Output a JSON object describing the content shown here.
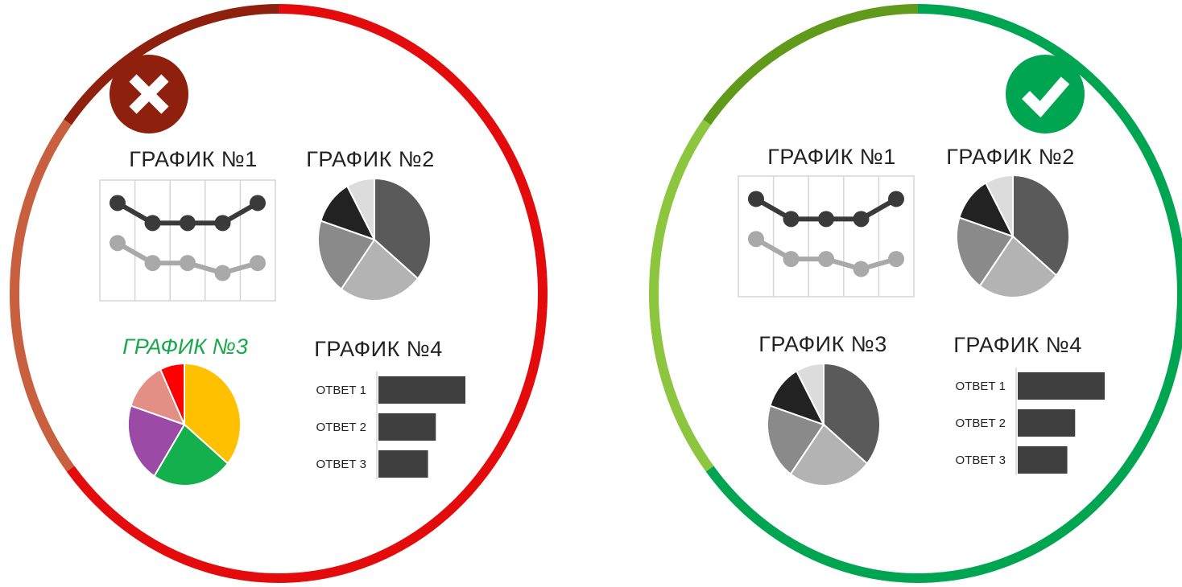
{
  "panels": [
    {
      "id": "bad",
      "badge_icon": "cross-icon",
      "ring_colors": {
        "main": "#e30b0b",
        "left": "#c8603f",
        "top_left": "#8f200e"
      },
      "badge_color": "#8f200e",
      "charts": {
        "chart1": {
          "title": "ГРАФИК №1",
          "series": [
            {
              "values": [
                4,
                3,
                3,
                3,
                4
              ],
              "color": "#3a3a3a"
            },
            {
              "values": [
                2,
                1,
                1,
                0.5,
                1
              ],
              "color": "#a9a9a9"
            }
          ]
        },
        "chart2": {
          "title": "ГРАФИК №2",
          "slices": [
            {
              "value": 36,
              "color": "#5a5a5a"
            },
            {
              "value": 24,
              "color": "#b3b3b3"
            },
            {
              "value": 20,
              "color": "#8a8a8a"
            },
            {
              "value": 12,
              "color": "#222222"
            },
            {
              "value": 8,
              "color": "#dcdcdc"
            }
          ]
        },
        "chart3": {
          "title": "ГРАФИК №3",
          "title_color": "#17a84a",
          "slices": [
            {
              "value": 36,
              "color": "#ffc000"
            },
            {
              "value": 23,
              "color": "#14b04d"
            },
            {
              "value": 21,
              "color": "#9b4aa6"
            },
            {
              "value": 13,
              "color": "#e38f86"
            },
            {
              "value": 7,
              "color": "#ff0000"
            }
          ]
        },
        "chart4": {
          "title": "ГРАФИК №4",
          "bars": [
            {
              "label": "ОТВЕТ 1",
              "value": 100
            },
            {
              "label": "ОТВЕТ 2",
              "value": 66
            },
            {
              "label": "ОТВЕТ 3",
              "value": 57
            }
          ],
          "bar_color": "#3f3f3f"
        }
      }
    },
    {
      "id": "good",
      "badge_icon": "check-icon",
      "ring_colors": {
        "main": "#00a551",
        "left": "#8cc63f",
        "top_left": "#5f9a1a"
      },
      "badge_color": "#00a551",
      "charts": {
        "chart1": {
          "title": "ГРАФИК №1",
          "series": [
            {
              "values": [
                4,
                3,
                3,
                3,
                4
              ],
              "color": "#3a3a3a"
            },
            {
              "values": [
                2,
                1,
                1,
                0.5,
                1
              ],
              "color": "#a9a9a9"
            }
          ]
        },
        "chart2": {
          "title": "ГРАФИК №2",
          "slices": [
            {
              "value": 36,
              "color": "#5a5a5a"
            },
            {
              "value": 24,
              "color": "#b3b3b3"
            },
            {
              "value": 20,
              "color": "#8a8a8a"
            },
            {
              "value": 12,
              "color": "#222222"
            },
            {
              "value": 8,
              "color": "#dcdcdc"
            }
          ]
        },
        "chart3": {
          "title": "ГРАФИК №3",
          "title_color": "#222222",
          "slices": [
            {
              "value": 36,
              "color": "#5a5a5a"
            },
            {
              "value": 24,
              "color": "#b3b3b3"
            },
            {
              "value": 20,
              "color": "#8a8a8a"
            },
            {
              "value": 12,
              "color": "#222222"
            },
            {
              "value": 8,
              "color": "#dcdcdc"
            }
          ]
        },
        "chart4": {
          "title": "ГРАФИК №4",
          "bars": [
            {
              "label": "ОТВЕТ 1",
              "value": 100
            },
            {
              "label": "ОТВЕТ 2",
              "value": 66
            },
            {
              "label": "ОТВЕТ 3",
              "value": 57
            }
          ],
          "bar_color": "#3f3f3f"
        }
      }
    }
  ]
}
